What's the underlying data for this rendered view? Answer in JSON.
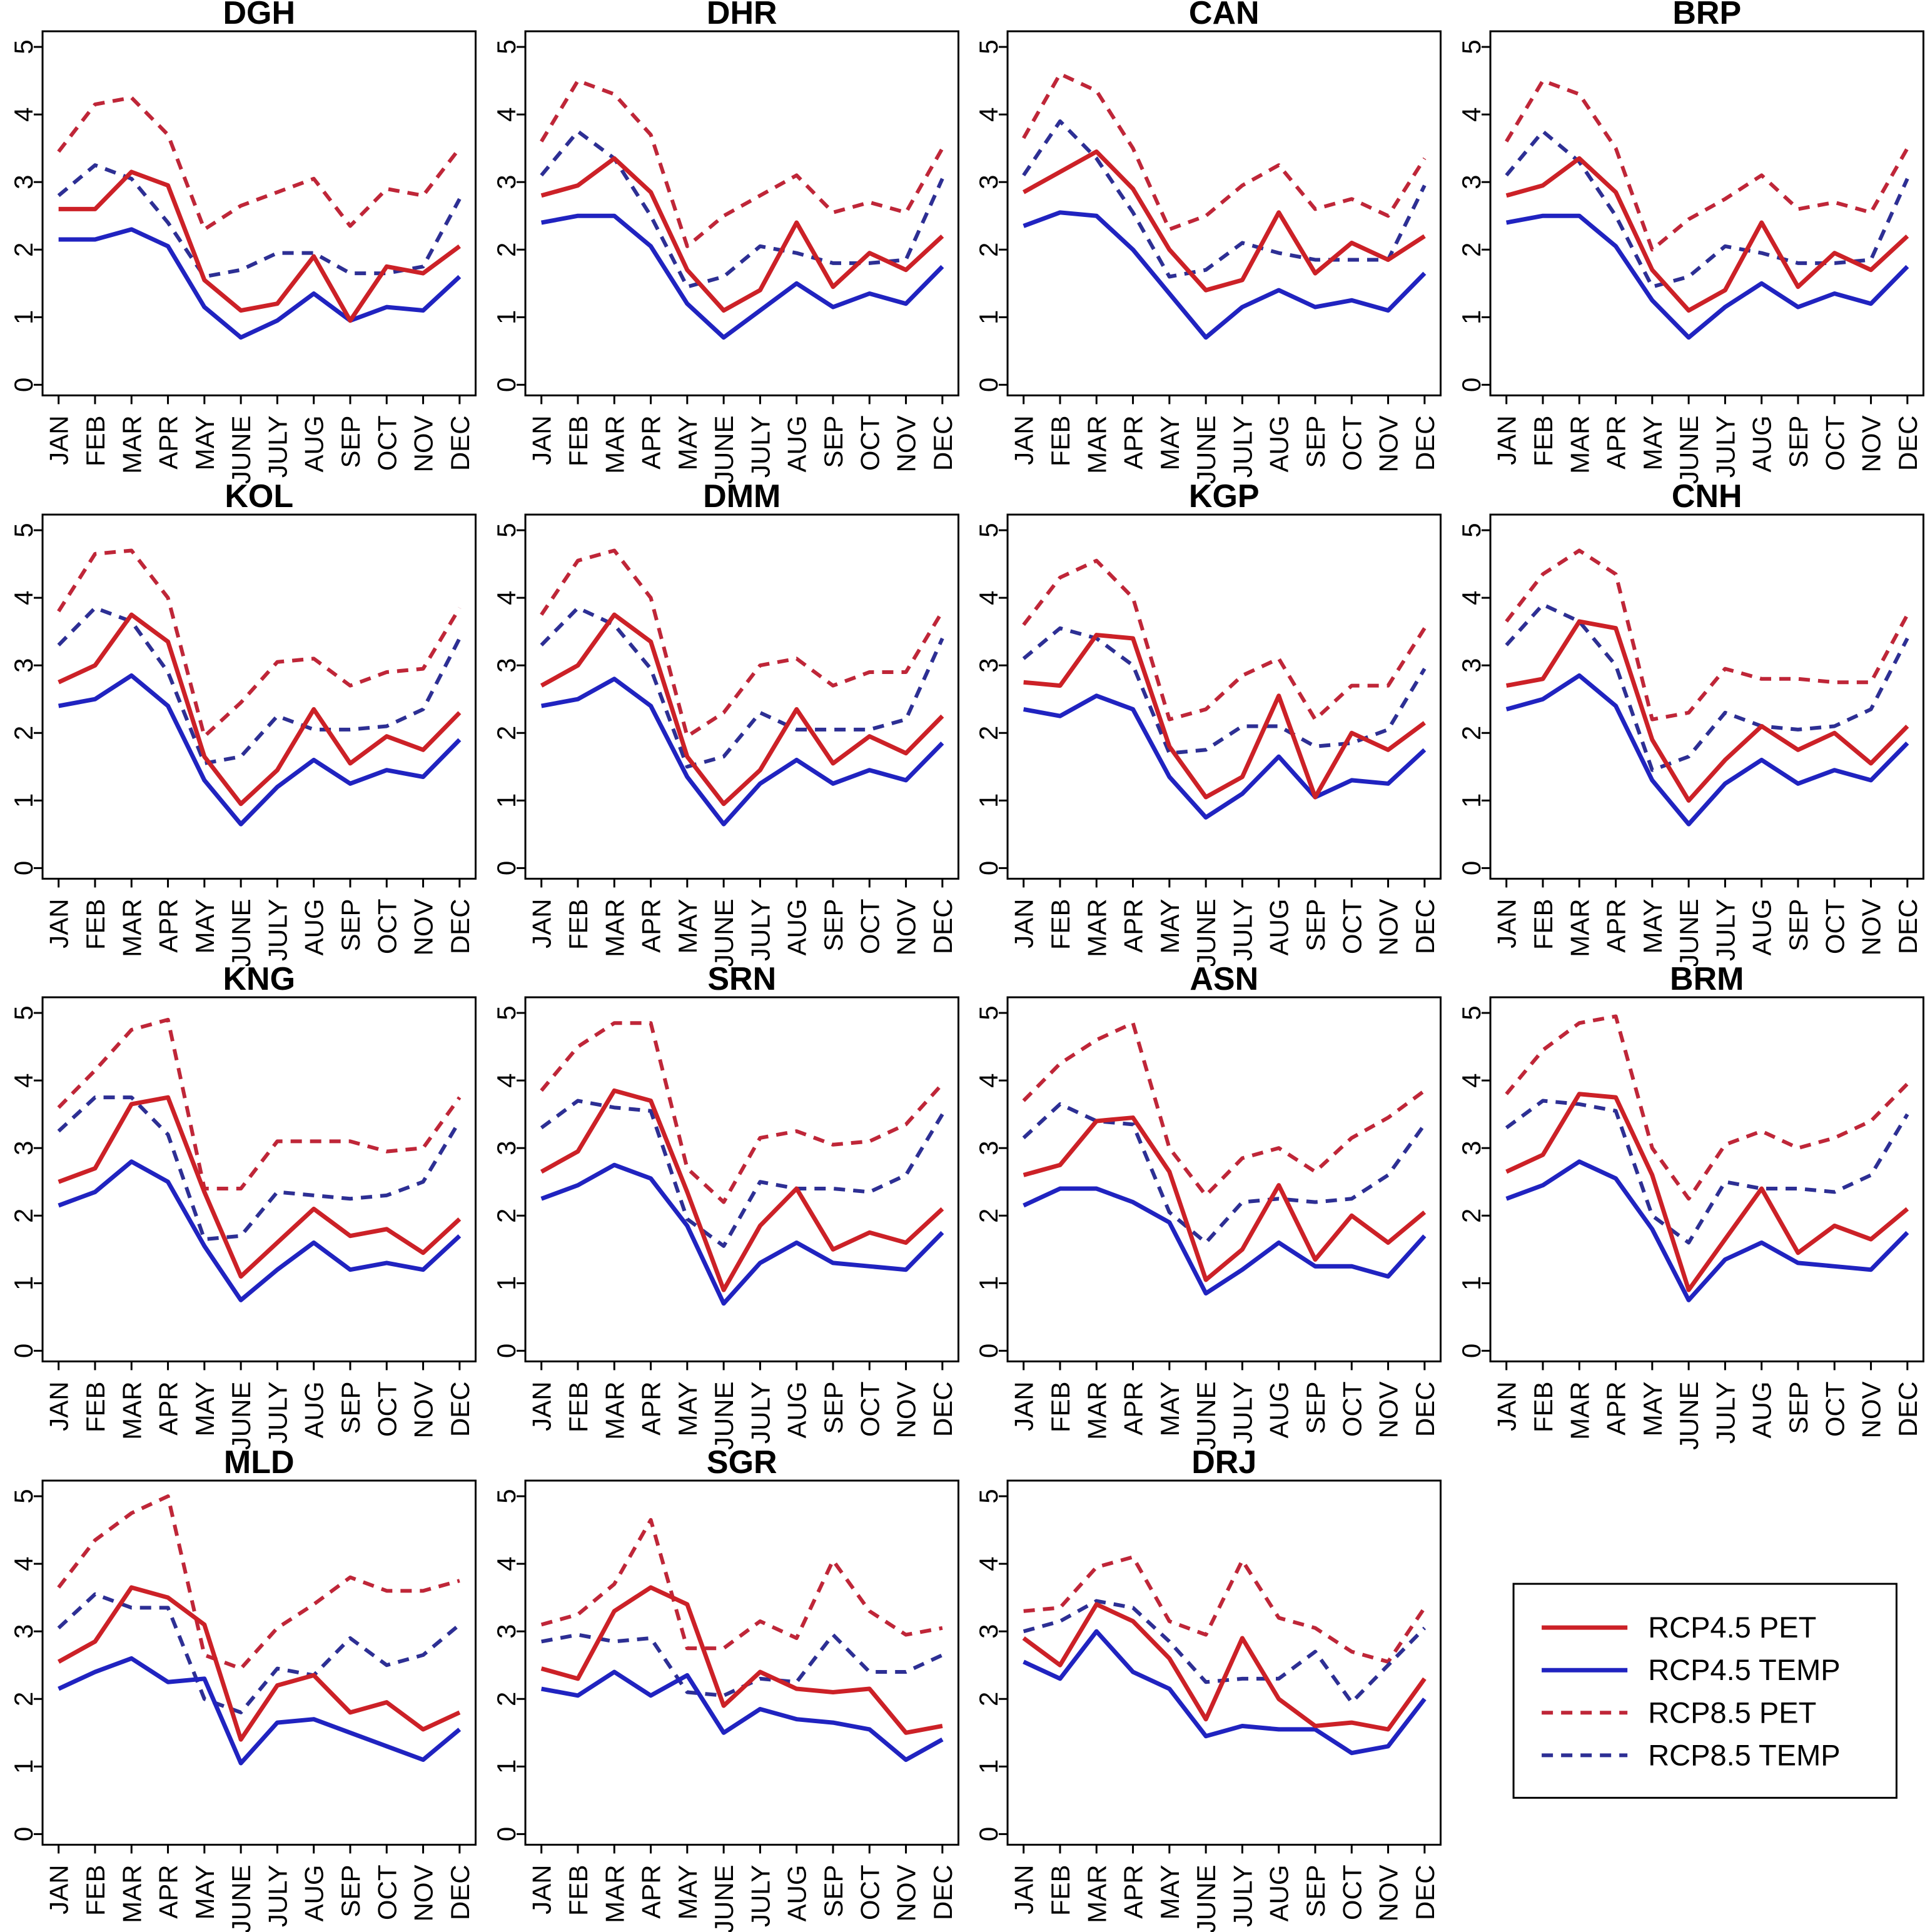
{
  "chart_data": {
    "type": "line",
    "layout": "4x4 grid of small-multiple monthly line charts, legend box in last cell",
    "x_categories": [
      "JAN",
      "FEB",
      "MAR",
      "APR",
      "MAY",
      "JUNE",
      "JULY",
      "AUG",
      "SEP",
      "OCT",
      "NOV",
      "DEC"
    ],
    "ylim": [
      0,
      5
    ],
    "yticks": [
      0,
      1,
      2,
      3,
      4,
      5
    ],
    "grid": false,
    "legend_position": "bottom-right-cell",
    "series_styles": [
      {
        "key": "rcp45_pet",
        "label": "RCP4.5 PET",
        "color": "#CC2127",
        "dash": "solid"
      },
      {
        "key": "rcp45_temp",
        "label": "RCP4.5 TEMP",
        "color": "#2023C0",
        "dash": "solid"
      },
      {
        "key": "rcp85_pet",
        "label": "RCP8.5 PET",
        "color": "#BF2638",
        "dash": "dashed"
      },
      {
        "key": "rcp85_temp",
        "label": "RCP8.5 TEMP",
        "color": "#2D2F94",
        "dash": "dashed"
      }
    ],
    "panels": [
      {
        "code": "DGH",
        "rcp45_pet": [
          2.6,
          2.6,
          3.15,
          2.95,
          1.55,
          1.1,
          1.2,
          1.9,
          0.95,
          1.75,
          1.65,
          2.05
        ],
        "rcp45_temp": [
          2.15,
          2.15,
          2.3,
          2.05,
          1.15,
          0.7,
          0.95,
          1.35,
          0.95,
          1.15,
          1.1,
          1.6
        ],
        "rcp85_pet": [
          3.45,
          4.15,
          4.25,
          3.7,
          2.3,
          2.65,
          2.85,
          3.05,
          2.35,
          2.9,
          2.8,
          3.5
        ],
        "rcp85_temp": [
          2.8,
          3.25,
          3.05,
          2.4,
          1.6,
          1.7,
          1.95,
          1.95,
          1.65,
          1.65,
          1.75,
          2.75
        ]
      },
      {
        "code": "DHR",
        "rcp45_pet": [
          2.8,
          2.95,
          3.35,
          2.85,
          1.7,
          1.1,
          1.4,
          2.4,
          1.45,
          1.95,
          1.7,
          2.2
        ],
        "rcp45_temp": [
          2.4,
          2.5,
          2.5,
          2.05,
          1.2,
          0.7,
          1.1,
          1.5,
          1.15,
          1.35,
          1.2,
          1.75
        ],
        "rcp85_pet": [
          3.6,
          4.5,
          4.3,
          3.7,
          2.05,
          2.5,
          2.8,
          3.1,
          2.55,
          2.7,
          2.55,
          3.5
        ],
        "rcp85_temp": [
          3.1,
          3.75,
          3.35,
          2.5,
          1.45,
          1.6,
          2.05,
          1.95,
          1.8,
          1.8,
          1.85,
          3.05
        ]
      },
      {
        "code": "CAN",
        "rcp45_pet": [
          2.85,
          3.15,
          3.45,
          2.9,
          2.0,
          1.4,
          1.55,
          2.55,
          1.65,
          2.1,
          1.85,
          2.2
        ],
        "rcp45_temp": [
          2.35,
          2.55,
          2.5,
          2.0,
          1.35,
          0.7,
          1.15,
          1.4,
          1.15,
          1.25,
          1.1,
          1.65
        ],
        "rcp85_pet": [
          3.65,
          4.6,
          4.35,
          3.5,
          2.3,
          2.5,
          2.95,
          3.25,
          2.6,
          2.75,
          2.5,
          3.35
        ],
        "rcp85_temp": [
          3.1,
          3.9,
          3.35,
          2.55,
          1.6,
          1.7,
          2.1,
          1.95,
          1.85,
          1.85,
          1.85,
          2.95
        ]
      },
      {
        "code": "BRP",
        "rcp45_pet": [
          2.8,
          2.95,
          3.35,
          2.85,
          1.7,
          1.1,
          1.4,
          2.4,
          1.45,
          1.95,
          1.7,
          2.2
        ],
        "rcp45_temp": [
          2.4,
          2.5,
          2.5,
          2.05,
          1.25,
          0.7,
          1.15,
          1.5,
          1.15,
          1.35,
          1.2,
          1.75
        ],
        "rcp85_pet": [
          3.6,
          4.5,
          4.3,
          3.5,
          2.0,
          2.45,
          2.75,
          3.1,
          2.6,
          2.7,
          2.55,
          3.5
        ],
        "rcp85_temp": [
          3.1,
          3.75,
          3.3,
          2.5,
          1.45,
          1.6,
          2.05,
          1.95,
          1.8,
          1.8,
          1.85,
          3.05
        ]
      },
      {
        "code": "KOL",
        "rcp45_pet": [
          2.75,
          3.0,
          3.75,
          3.35,
          1.65,
          0.95,
          1.45,
          2.35,
          1.55,
          1.95,
          1.75,
          2.3
        ],
        "rcp45_temp": [
          2.4,
          2.5,
          2.85,
          2.4,
          1.3,
          0.65,
          1.2,
          1.6,
          1.25,
          1.45,
          1.35,
          1.9
        ],
        "rcp85_pet": [
          3.8,
          4.65,
          4.7,
          4.0,
          1.95,
          2.45,
          3.05,
          3.1,
          2.7,
          2.9,
          2.95,
          3.85
        ],
        "rcp85_temp": [
          3.3,
          3.85,
          3.65,
          2.9,
          1.55,
          1.65,
          2.25,
          2.05,
          2.05,
          2.1,
          2.35,
          3.4
        ]
      },
      {
        "code": "DMM",
        "rcp45_pet": [
          2.7,
          3.0,
          3.75,
          3.35,
          1.65,
          0.95,
          1.45,
          2.35,
          1.55,
          1.95,
          1.7,
          2.25
        ],
        "rcp45_temp": [
          2.4,
          2.5,
          2.8,
          2.4,
          1.35,
          0.65,
          1.25,
          1.6,
          1.25,
          1.45,
          1.3,
          1.85
        ],
        "rcp85_pet": [
          3.75,
          4.55,
          4.7,
          4.0,
          1.95,
          2.3,
          3.0,
          3.1,
          2.7,
          2.9,
          2.9,
          3.8
        ],
        "rcp85_temp": [
          3.3,
          3.85,
          3.6,
          2.95,
          1.5,
          1.65,
          2.3,
          2.05,
          2.05,
          2.05,
          2.2,
          3.4
        ]
      },
      {
        "code": "KGP",
        "rcp45_pet": [
          2.75,
          2.7,
          3.45,
          3.4,
          1.8,
          1.05,
          1.35,
          2.55,
          1.05,
          2.0,
          1.75,
          2.15
        ],
        "rcp45_temp": [
          2.35,
          2.25,
          2.55,
          2.35,
          1.35,
          0.75,
          1.1,
          1.65,
          1.05,
          1.3,
          1.25,
          1.75
        ],
        "rcp85_pet": [
          3.6,
          4.3,
          4.55,
          4.0,
          2.2,
          2.35,
          2.85,
          3.1,
          2.2,
          2.7,
          2.7,
          3.55
        ],
        "rcp85_temp": [
          3.1,
          3.55,
          3.4,
          3.0,
          1.7,
          1.75,
          2.1,
          2.1,
          1.8,
          1.85,
          2.05,
          2.95
        ]
      },
      {
        "code": "CNH",
        "rcp45_pet": [
          2.7,
          2.8,
          3.65,
          3.55,
          1.9,
          1.0,
          1.6,
          2.1,
          1.75,
          2.0,
          1.55,
          2.1
        ],
        "rcp45_temp": [
          2.35,
          2.5,
          2.85,
          2.4,
          1.3,
          0.65,
          1.25,
          1.6,
          1.25,
          1.45,
          1.3,
          1.85
        ],
        "rcp85_pet": [
          3.65,
          4.35,
          4.7,
          4.35,
          2.2,
          2.3,
          2.95,
          2.8,
          2.8,
          2.75,
          2.75,
          3.75
        ],
        "rcp85_temp": [
          3.3,
          3.9,
          3.65,
          3.0,
          1.45,
          1.65,
          2.3,
          2.1,
          2.05,
          2.1,
          2.35,
          3.4
        ]
      },
      {
        "code": "KNG",
        "rcp45_pet": [
          2.5,
          2.7,
          3.65,
          3.75,
          2.35,
          1.1,
          1.6,
          2.1,
          1.7,
          1.8,
          1.45,
          1.95
        ],
        "rcp45_temp": [
          2.15,
          2.35,
          2.8,
          2.5,
          1.55,
          0.75,
          1.2,
          1.6,
          1.2,
          1.3,
          1.2,
          1.7
        ],
        "rcp85_pet": [
          3.6,
          4.15,
          4.75,
          4.9,
          2.4,
          2.4,
          3.1,
          3.1,
          3.1,
          2.95,
          3.0,
          3.75
        ],
        "rcp85_temp": [
          3.25,
          3.75,
          3.75,
          3.2,
          1.65,
          1.7,
          2.35,
          2.3,
          2.25,
          2.3,
          2.5,
          3.4
        ]
      },
      {
        "code": "SRN",
        "rcp45_pet": [
          2.65,
          2.95,
          3.85,
          3.7,
          2.35,
          0.9,
          1.85,
          2.4,
          1.5,
          1.75,
          1.6,
          2.1
        ],
        "rcp45_temp": [
          2.25,
          2.45,
          2.75,
          2.55,
          1.85,
          0.7,
          1.3,
          1.6,
          1.3,
          1.25,
          1.2,
          1.75
        ],
        "rcp85_pet": [
          3.85,
          4.5,
          4.85,
          4.85,
          2.7,
          2.2,
          3.15,
          3.25,
          3.05,
          3.1,
          3.35,
          3.95
        ],
        "rcp85_temp": [
          3.3,
          3.7,
          3.6,
          3.55,
          1.95,
          1.55,
          2.5,
          2.4,
          2.4,
          2.35,
          2.6,
          3.5
        ]
      },
      {
        "code": "ASN",
        "rcp45_pet": [
          2.6,
          2.75,
          3.4,
          3.45,
          2.65,
          1.05,
          1.5,
          2.45,
          1.35,
          2.0,
          1.6,
          2.05
        ],
        "rcp45_temp": [
          2.15,
          2.4,
          2.4,
          2.2,
          1.9,
          0.85,
          1.2,
          1.6,
          1.25,
          1.25,
          1.1,
          1.7
        ],
        "rcp85_pet": [
          3.7,
          4.25,
          4.6,
          4.85,
          3.0,
          2.3,
          2.85,
          3.0,
          2.65,
          3.15,
          3.45,
          3.85
        ],
        "rcp85_temp": [
          3.15,
          3.65,
          3.4,
          3.35,
          2.05,
          1.6,
          2.2,
          2.25,
          2.2,
          2.25,
          2.6,
          3.35
        ]
      },
      {
        "code": "BRM",
        "rcp45_pet": [
          2.65,
          2.9,
          3.8,
          3.75,
          2.6,
          0.9,
          1.65,
          2.4,
          1.45,
          1.85,
          1.65,
          2.1
        ],
        "rcp45_temp": [
          2.25,
          2.45,
          2.8,
          2.55,
          1.8,
          0.75,
          1.35,
          1.6,
          1.3,
          1.25,
          1.2,
          1.75
        ],
        "rcp85_pet": [
          3.8,
          4.45,
          4.85,
          4.95,
          3.0,
          2.25,
          3.05,
          3.25,
          3.0,
          3.15,
          3.4,
          3.95
        ],
        "rcp85_temp": [
          3.3,
          3.7,
          3.65,
          3.55,
          2.0,
          1.6,
          2.5,
          2.4,
          2.4,
          2.35,
          2.6,
          3.5
        ]
      },
      {
        "code": "MLD",
        "rcp45_pet": [
          2.55,
          2.85,
          3.65,
          3.5,
          3.1,
          1.4,
          2.2,
          2.35,
          1.8,
          1.95,
          1.55,
          1.8
        ],
        "rcp45_temp": [
          2.15,
          2.4,
          2.6,
          2.25,
          2.3,
          1.05,
          1.65,
          1.7,
          1.5,
          1.3,
          1.1,
          1.55
        ],
        "rcp85_pet": [
          3.65,
          4.35,
          4.75,
          5.0,
          2.65,
          2.45,
          3.05,
          3.4,
          3.8,
          3.6,
          3.6,
          3.75
        ],
        "rcp85_temp": [
          3.05,
          3.55,
          3.35,
          3.35,
          2.0,
          1.8,
          2.45,
          2.35,
          2.9,
          2.5,
          2.65,
          3.1
        ]
      },
      {
        "code": "SGR",
        "rcp45_pet": [
          2.45,
          2.3,
          3.3,
          3.65,
          3.4,
          1.9,
          2.4,
          2.15,
          2.1,
          2.15,
          1.5,
          1.6
        ],
        "rcp45_temp": [
          2.15,
          2.05,
          2.4,
          2.05,
          2.35,
          1.5,
          1.85,
          1.7,
          1.65,
          1.55,
          1.1,
          1.4
        ],
        "rcp85_pet": [
          3.1,
          3.25,
          3.7,
          4.65,
          2.75,
          2.75,
          3.15,
          2.9,
          4.05,
          3.3,
          2.95,
          3.05
        ],
        "rcp85_temp": [
          2.85,
          2.95,
          2.85,
          2.9,
          2.1,
          2.05,
          2.3,
          2.25,
          2.95,
          2.4,
          2.4,
          2.65
        ]
      },
      {
        "code": "DRJ",
        "rcp45_pet": [
          2.9,
          2.5,
          3.4,
          3.15,
          2.6,
          1.7,
          2.9,
          2.0,
          1.6,
          1.65,
          1.55,
          2.3
        ],
        "rcp45_temp": [
          2.55,
          2.3,
          3.0,
          2.4,
          2.15,
          1.45,
          1.6,
          1.55,
          1.55,
          1.2,
          1.3,
          2.0
        ],
        "rcp85_pet": [
          3.3,
          3.35,
          3.95,
          4.1,
          3.15,
          2.95,
          4.05,
          3.2,
          3.05,
          2.7,
          2.55,
          3.35
        ],
        "rcp85_temp": [
          3.0,
          3.15,
          3.45,
          3.35,
          2.85,
          2.25,
          2.3,
          2.3,
          2.7,
          1.95,
          2.5,
          3.05
        ]
      }
    ],
    "legend": {
      "entries": [
        "RCP4.5 PET",
        "RCP4.5 TEMP",
        "RCP8.5 PET",
        "RCP8.5 TEMP"
      ]
    }
  }
}
